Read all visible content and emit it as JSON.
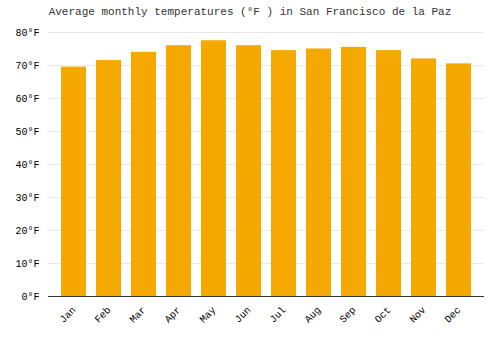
{
  "chart_data": {
    "type": "bar",
    "title": "Average monthly temperatures (°F ) in San Francisco de la Paz",
    "categories": [
      "Jan",
      "Feb",
      "Mar",
      "Apr",
      "May",
      "Jun",
      "Jul",
      "Aug",
      "Sep",
      "Oct",
      "Nov",
      "Dec"
    ],
    "values": [
      69.5,
      71.5,
      74.0,
      76.0,
      77.5,
      76.0,
      74.5,
      75.0,
      75.5,
      74.5,
      72.0,
      70.5
    ],
    "color": "#F5A800",
    "ylim": [
      0,
      80
    ],
    "yticks": [
      {
        "value": 0,
        "label": "0°F"
      },
      {
        "value": 10,
        "label": "10°F"
      },
      {
        "value": 20,
        "label": "20°F"
      },
      {
        "value": 30,
        "label": "30°F"
      },
      {
        "value": 40,
        "label": "40°F"
      },
      {
        "value": 50,
        "label": "50°F"
      },
      {
        "value": 60,
        "label": "60°F"
      },
      {
        "value": 70,
        "label": "70°F"
      },
      {
        "value": 80,
        "label": "80°F"
      }
    ],
    "grid": true
  }
}
